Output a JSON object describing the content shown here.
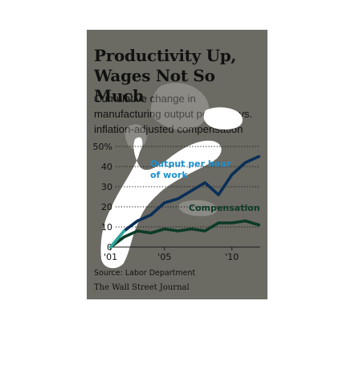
{
  "header": {
    "title_line1": "Productivity Up,",
    "title_line2": "Wages Not So Much",
    "subtitle_line1": "Cumulative change in",
    "subtitle_line2": "manufacturing output per hour vs.",
    "subtitle_line3": "inflation-adjusted compensation"
  },
  "footer": {
    "source": "Source: Labor Department",
    "credit": "The Wall Street Journal"
  },
  "colors": {
    "card_background": "#6b6a63",
    "output_series": "#0a2f57",
    "compensation_series": "#0c3a26",
    "output_label": "#1a8fd0",
    "compensation_label": "#0c3a26",
    "highlight": "#ffffff",
    "text": "#111111"
  },
  "chart_data": {
    "type": "line",
    "x": [
      2001,
      2002,
      2003,
      2004,
      2005,
      2006,
      2007,
      2008,
      2009,
      2010,
      2011,
      2012
    ],
    "series": [
      {
        "name_lines": [
          "Output per hour",
          "of work"
        ],
        "values": [
          0,
          8,
          13,
          16,
          22,
          24,
          28,
          32,
          26,
          36,
          42,
          45
        ]
      },
      {
        "name_lines": [
          "Compensation"
        ],
        "values": [
          0,
          5,
          8,
          7,
          9,
          8,
          9,
          8,
          12,
          12,
          13,
          11
        ]
      }
    ],
    "xticks": [
      {
        "value": 2001,
        "label": "'01"
      },
      {
        "value": 2005,
        "label": "'05"
      },
      {
        "value": 2010,
        "label": "'10"
      }
    ],
    "yticks": [
      {
        "value": 0,
        "label": "0"
      },
      {
        "value": 10,
        "label": "10"
      },
      {
        "value": 20,
        "label": "20"
      },
      {
        "value": 30,
        "label": "30"
      },
      {
        "value": 40,
        "label": "40"
      },
      {
        "value": 50,
        "label": "50%"
      }
    ],
    "xlim": [
      2000.9,
      2012.1
    ],
    "ylim": [
      0,
      50
    ],
    "grid": "dotted horizontal"
  }
}
